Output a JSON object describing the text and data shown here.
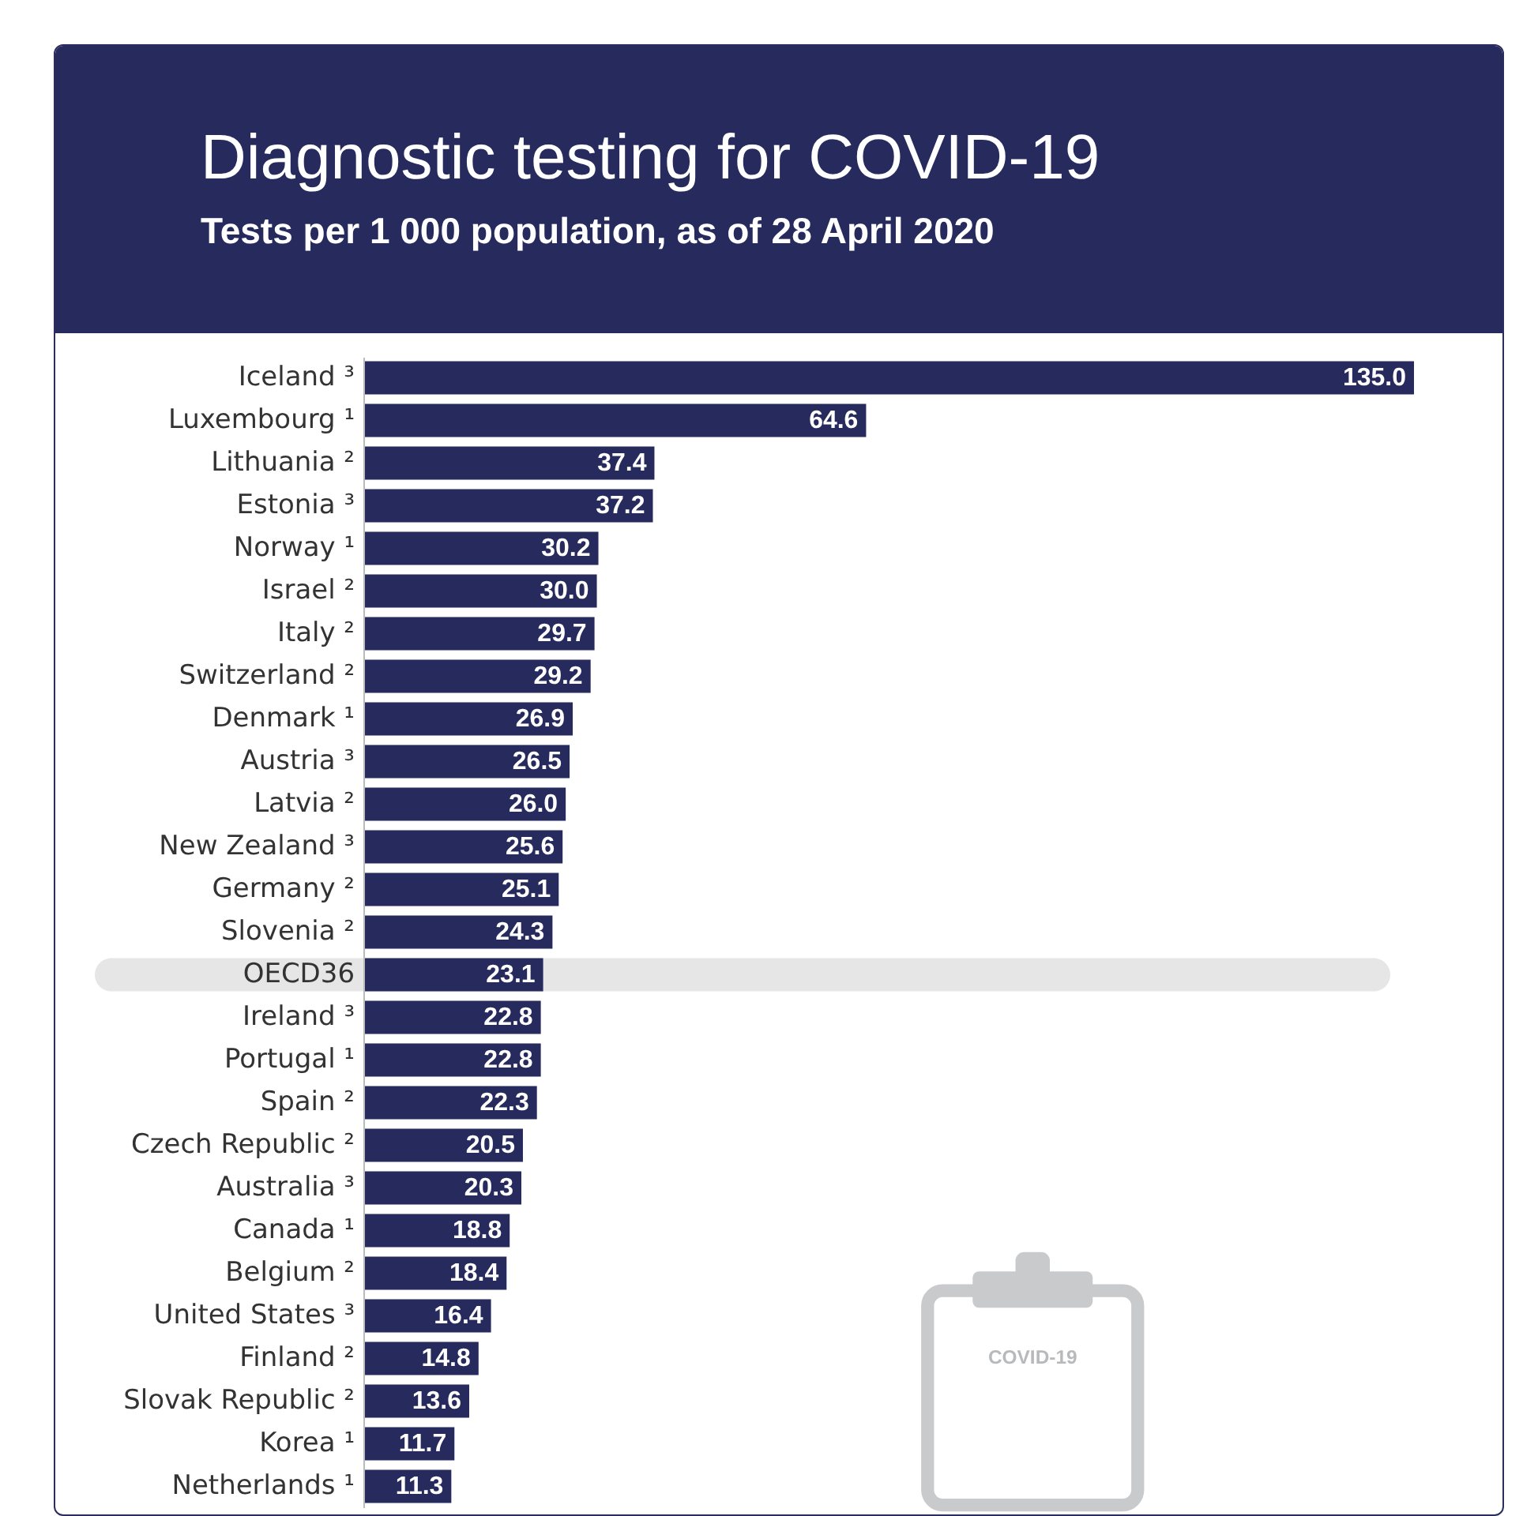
{
  "chart_data": {
    "type": "bar",
    "orientation": "horizontal",
    "title": "Diagnostic testing for COVID-19",
    "subtitle": "Tests per 1 000 population, as of 28 April 2020",
    "categories": [
      "Iceland ³",
      "Luxembourg ¹",
      "Lithuania ²",
      "Estonia ³",
      "Norway ¹",
      "Israel ²",
      "Italy ²",
      "Switzerland ²",
      "Denmark ¹",
      "Austria ³",
      "Latvia ²",
      "New Zealand ³",
      "Germany ²",
      "Slovenia ²",
      "OECD36",
      "Ireland ³",
      "Portugal ¹",
      "Spain ²",
      "Czech Republic ²",
      "Australia ³",
      "Canada ¹",
      "Belgium ²",
      "United States ³",
      "Finland ²",
      "Slovak Republic ²",
      "Korea ¹",
      "Netherlands ¹"
    ],
    "values": [
      135.0,
      64.6,
      37.4,
      37.2,
      30.2,
      30.0,
      29.7,
      29.2,
      26.9,
      26.5,
      26.0,
      25.6,
      25.1,
      24.3,
      23.1,
      22.8,
      22.8,
      22.3,
      20.5,
      20.3,
      18.8,
      18.4,
      16.4,
      14.8,
      13.6,
      11.7,
      11.3
    ],
    "value_labels": [
      "135.0",
      "64.6",
      "37.4",
      "37.2",
      "30.2",
      "30.0",
      "29.7",
      "29.2",
      "26.9",
      "26.5",
      "26.0",
      "25.6",
      "25.1",
      "24.3",
      "23.1",
      "22.8",
      "22.8",
      "22.3",
      "20.5",
      "20.3",
      "18.8",
      "18.4",
      "16.4",
      "14.8",
      "13.6",
      "11.7",
      "11.3"
    ],
    "color": "#262a5c",
    "bands": [
      {
        "axis": "y",
        "from": "OECD36",
        "to": "OECD36",
        "color": "#e6e6e6"
      }
    ],
    "annotations": [
      "COVID-19"
    ]
  }
}
